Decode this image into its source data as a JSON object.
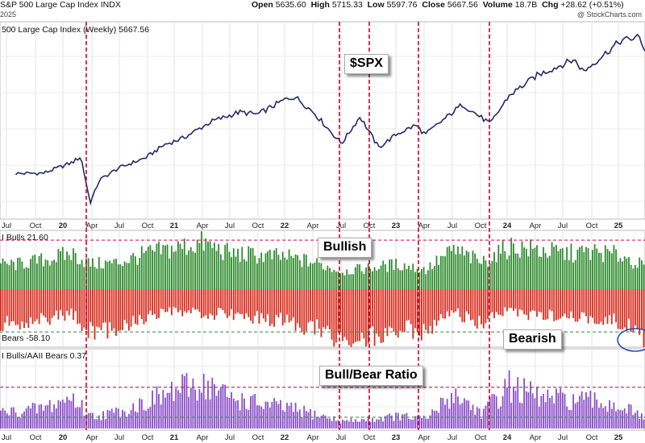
{
  "header": {
    "title": "S&P 500 Large Cap Index",
    "ticker": "INDX",
    "date": "2025",
    "source": "@ StockCharts.com",
    "open_label": "Open",
    "open": "5635.60",
    "high_label": "High",
    "high": "5715.33",
    "low_label": "Low",
    "low": "5597.76",
    "close_label": "Close",
    "close": "5667.56",
    "volume_label": "Volume",
    "volume": "18.7B",
    "chg_label": "Chg",
    "chg": "+28.62 (+0.51%)"
  },
  "colors": {
    "price_line": "#1f2a6b",
    "bull": "#2e8b2e",
    "bear": "#d9291c",
    "ratio": "#8a4ec8",
    "guide": "#d4002a",
    "circle": "#1f4fc2"
  },
  "chart_data": [
    {
      "type": "line",
      "panel": "price",
      "title": "500 Large Cap Index (Weekly) 5667.56",
      "annotation": "$SPX",
      "x": [
        "2019-07",
        "2019-10",
        "2020-01",
        "2020-02",
        "2020-03",
        "2020-04",
        "2020-06",
        "2020-09",
        "2020-11",
        "2021-01",
        "2021-04",
        "2021-07",
        "2021-09",
        "2021-12",
        "2022-01",
        "2022-03",
        "2022-06",
        "2022-08",
        "2022-10",
        "2022-12",
        "2023-02",
        "2023-03",
        "2023-07",
        "2023-10",
        "2023-12",
        "2024-03",
        "2024-07",
        "2024-08",
        "2024-12",
        "2025-02",
        "2025-03"
      ],
      "values": [
        2980,
        2990,
        3230,
        3370,
        2300,
        2830,
        3100,
        3350,
        3650,
        3800,
        4180,
        4400,
        4350,
        4700,
        4760,
        4400,
        3670,
        4300,
        3580,
        3900,
        4100,
        3880,
        4580,
        4130,
        4780,
        5250,
        5620,
        5340,
        6050,
        6140,
        5667.56
      ]
    },
    {
      "type": "bar",
      "panel": "bulls_bears",
      "title_bulls": "I Bulls 21.60",
      "title_bears": "Bears -58.10",
      "annotation_bull": "Bullish",
      "annotation_bear": "Bearish",
      "ylim": [
        -65,
        65
      ],
      "guides": [
        55,
        -48
      ],
      "x": [
        "2019-07",
        "2019-10",
        "2020-01",
        "2020-03",
        "2020-06",
        "2020-09",
        "2020-12",
        "2021-03",
        "2021-06",
        "2021-09",
        "2021-12",
        "2022-03",
        "2022-06",
        "2022-09",
        "2022-12",
        "2023-03",
        "2023-06",
        "2023-09",
        "2023-12",
        "2024-03",
        "2024-06",
        "2024-09",
        "2024-12",
        "2025-02",
        "2025-03"
      ],
      "bulls": [
        28,
        33,
        40,
        28,
        30,
        40,
        46,
        52,
        40,
        38,
        36,
        30,
        20,
        24,
        28,
        22,
        44,
        30,
        48,
        44,
        40,
        42,
        38,
        28,
        21.6
      ],
      "bears": [
        -38,
        -33,
        -28,
        -48,
        -42,
        -32,
        -26,
        -28,
        -28,
        -32,
        -36,
        -44,
        -56,
        -54,
        -44,
        -48,
        -26,
        -40,
        -24,
        -30,
        -30,
        -32,
        -38,
        -50,
        -58.1
      ]
    },
    {
      "type": "bar",
      "panel": "ratio",
      "title": "I Bulls/AAII Bears 0.37",
      "annotation": "Bull/Bear Ratio",
      "ylim": [
        0,
        3.6
      ],
      "guides": [
        2.0,
        0.55
      ],
      "x": [
        "2019-07",
        "2019-10",
        "2020-01",
        "2020-03",
        "2020-06",
        "2020-09",
        "2020-12",
        "2021-03",
        "2021-06",
        "2021-09",
        "2021-12",
        "2022-03",
        "2022-06",
        "2022-09",
        "2022-12",
        "2023-03",
        "2023-06",
        "2023-09",
        "2023-12",
        "2024-03",
        "2024-06",
        "2024-09",
        "2024-12",
        "2025-02",
        "2025-03"
      ],
      "values": [
        0.8,
        1.0,
        1.5,
        0.6,
        0.8,
        1.3,
        1.8,
        2.2,
        1.5,
        1.2,
        1.0,
        0.7,
        0.35,
        0.45,
        0.6,
        0.45,
        1.7,
        0.75,
        2.1,
        1.5,
        1.4,
        1.3,
        1.1,
        0.6,
        0.37
      ]
    }
  ],
  "x_axis": {
    "labels": [
      {
        "t": "Jul",
        "x": 8,
        "yr": false
      },
      {
        "t": "Oct",
        "x": 44,
        "yr": false
      },
      {
        "t": "20",
        "x": 78,
        "yr": true
      },
      {
        "t": "Apr",
        "x": 114,
        "yr": false
      },
      {
        "t": "Jul",
        "x": 148,
        "yr": false
      },
      {
        "t": "Oct",
        "x": 183,
        "yr": false
      },
      {
        "t": "21",
        "x": 216,
        "yr": true
      },
      {
        "t": "Apr",
        "x": 251,
        "yr": false
      },
      {
        "t": "Jul",
        "x": 285,
        "yr": false
      },
      {
        "t": "Oct",
        "x": 320,
        "yr": false
      },
      {
        "t": "22",
        "x": 353,
        "yr": true
      },
      {
        "t": "Apr",
        "x": 388,
        "yr": false
      },
      {
        "t": "Jul",
        "x": 423,
        "yr": false
      },
      {
        "t": "Oct",
        "x": 458,
        "yr": false
      },
      {
        "t": "23",
        "x": 491,
        "yr": true
      },
      {
        "t": "Apr",
        "x": 526,
        "yr": false
      },
      {
        "t": "Jul",
        "x": 561,
        "yr": false
      },
      {
        "t": "Oct",
        "x": 596,
        "yr": false
      },
      {
        "t": "24",
        "x": 629,
        "yr": true
      },
      {
        "t": "Apr",
        "x": 664,
        "yr": false
      },
      {
        "t": "Jul",
        "x": 698,
        "yr": false
      },
      {
        "t": "Oct",
        "x": 734,
        "yr": false
      },
      {
        "t": "25",
        "x": 767,
        "yr": true
      }
    ]
  },
  "vertical_markers": [
    "2020-03",
    "2023-06",
    "2022-10",
    "2023-03",
    "2023-10"
  ]
}
